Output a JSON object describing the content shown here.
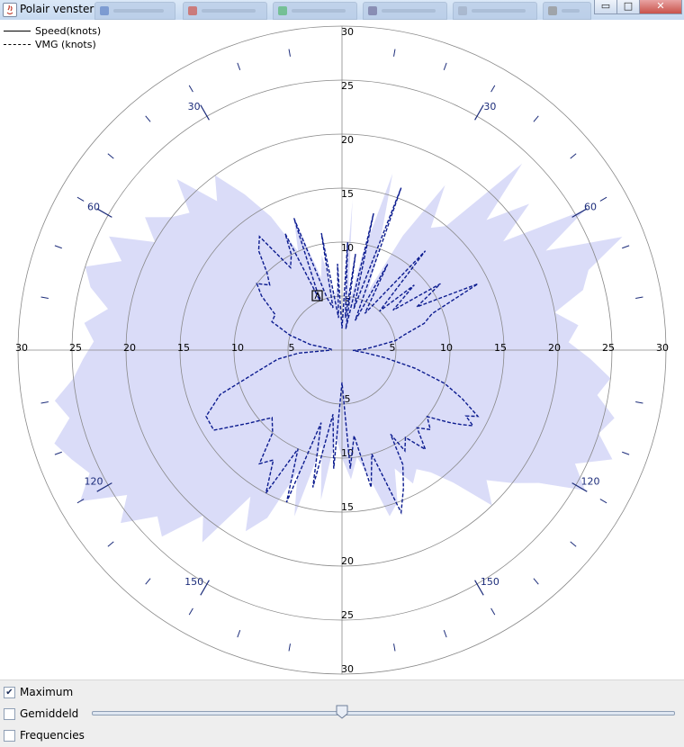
{
  "window": {
    "title": "Polair venster",
    "minimize": "▭",
    "maximize": "□",
    "close": "✕"
  },
  "legend": [
    {
      "label": "Speed(knots)",
      "style": "solid"
    },
    {
      "label": "VMG (knots)",
      "style": "dashed"
    }
  ],
  "controls": {
    "checkboxes": [
      {
        "label": "Maximum",
        "checked": true
      },
      {
        "label": "Gemiddeld",
        "checked": false
      },
      {
        "label": "Frequencies",
        "checked": false
      }
    ],
    "slider_value": 0.43
  },
  "colors": {
    "fill": "#dadcf8",
    "vmg": "#0b1b8f",
    "grid": "#888888",
    "angle_tick": "#1c2c7a"
  },
  "chart_data": {
    "type": "polar",
    "radial_ticks": [
      5,
      10,
      15,
      20,
      25,
      30
    ],
    "radial_max": 30,
    "angle_labels": [
      30,
      60,
      120,
      150
    ],
    "grid": true,
    "legend_position": "top-left",
    "series": [
      {
        "name": "Speed(knots)",
        "style": "filled",
        "points": [
          [
            0,
            2
          ],
          [
            4,
            14
          ],
          [
            8,
            4
          ],
          [
            12,
            9
          ],
          [
            16,
            17
          ],
          [
            20,
            10
          ],
          [
            24,
            6
          ],
          [
            28,
            12
          ],
          [
            32,
            18
          ],
          [
            36,
            14
          ],
          [
            40,
            15
          ],
          [
            44,
            24
          ],
          [
            48,
            18
          ],
          [
            52,
            22
          ],
          [
            56,
            18
          ],
          [
            60,
            26
          ],
          [
            64,
            21
          ],
          [
            68,
            28
          ],
          [
            72,
            24
          ],
          [
            76,
            23
          ],
          [
            80,
            20
          ],
          [
            84,
            22
          ],
          [
            88,
            21
          ],
          [
            92,
            23
          ],
          [
            96,
            25
          ],
          [
            100,
            24
          ],
          [
            104,
            26
          ],
          [
            108,
            25
          ],
          [
            112,
            27
          ],
          [
            116,
            24
          ],
          [
            120,
            26
          ],
          [
            124,
            22
          ],
          [
            128,
            20
          ],
          [
            132,
            18
          ],
          [
            136,
            20
          ],
          [
            140,
            16
          ],
          [
            144,
            14
          ],
          [
            148,
            13
          ],
          [
            152,
            14
          ],
          [
            156,
            12
          ],
          [
            160,
            15
          ],
          [
            164,
            16
          ],
          [
            168,
            12
          ],
          [
            172,
            10
          ],
          [
            176,
            12
          ],
          [
            180,
            10
          ],
          [
            184,
            8
          ],
          [
            188,
            14
          ],
          [
            192,
            9
          ],
          [
            196,
            16
          ],
          [
            200,
            12
          ],
          [
            204,
            17
          ],
          [
            208,
            19
          ],
          [
            212,
            16
          ],
          [
            216,
            22
          ],
          [
            220,
            20
          ],
          [
            224,
            24
          ],
          [
            228,
            23
          ],
          [
            232,
            26
          ],
          [
            236,
            24
          ],
          [
            240,
            28
          ],
          [
            244,
            26
          ],
          [
            248,
            27
          ],
          [
            252,
            28
          ],
          [
            256,
            26
          ],
          [
            260,
            27
          ],
          [
            264,
            25
          ],
          [
            268,
            24
          ],
          [
            272,
            23
          ],
          [
            276,
            24
          ],
          [
            280,
            22
          ],
          [
            284,
            24
          ],
          [
            288,
            25
          ],
          [
            292,
            22
          ],
          [
            296,
            24
          ],
          [
            300,
            20
          ],
          [
            304,
            22
          ],
          [
            308,
            20
          ],
          [
            312,
            19
          ],
          [
            316,
            22
          ],
          [
            320,
            18
          ],
          [
            324,
            20
          ],
          [
            328,
            17
          ],
          [
            332,
            14
          ],
          [
            336,
            10
          ],
          [
            340,
            13
          ],
          [
            344,
            7
          ],
          [
            348,
            9
          ],
          [
            352,
            5
          ],
          [
            356,
            6
          ]
        ]
      },
      {
        "name": "VMG (knots)",
        "style": "dashed",
        "points": [
          [
            0,
            2
          ],
          [
            3,
            10
          ],
          [
            6,
            3
          ],
          [
            8,
            9
          ],
          [
            10,
            2
          ],
          [
            13,
            13
          ],
          [
            16,
            4
          ],
          [
            20,
            16
          ],
          [
            24,
            3
          ],
          [
            28,
            9
          ],
          [
            32,
            4
          ],
          [
            40,
            12
          ],
          [
            44,
            5
          ],
          [
            48,
            9
          ],
          [
            52,
            6
          ],
          [
            56,
            11
          ],
          [
            60,
            8
          ],
          [
            64,
            14
          ],
          [
            68,
            9
          ],
          [
            72,
            8
          ],
          [
            76,
            6
          ],
          [
            80,
            5
          ],
          [
            84,
            3
          ],
          [
            88,
            2
          ],
          [
            92,
            1
          ],
          [
            96,
            2
          ],
          [
            100,
            4
          ],
          [
            104,
            7
          ],
          [
            108,
            10
          ],
          [
            112,
            12
          ],
          [
            116,
            14
          ],
          [
            118,
            13
          ],
          [
            120,
            14
          ],
          [
            122,
            13
          ],
          [
            124,
            12
          ],
          [
            128,
            10
          ],
          [
            132,
            11
          ],
          [
            136,
            10
          ],
          [
            140,
            12
          ],
          [
            144,
            10
          ],
          [
            148,
            11
          ],
          [
            150,
            9
          ],
          [
            152,
            12
          ],
          [
            156,
            14
          ],
          [
            160,
            16
          ],
          [
            164,
            10
          ],
          [
            168,
            13
          ],
          [
            172,
            8
          ],
          [
            176,
            11
          ],
          [
            180,
            3
          ],
          [
            184,
            11
          ],
          [
            188,
            6
          ],
          [
            192,
            13
          ],
          [
            196,
            7
          ],
          [
            200,
            15
          ],
          [
            204,
            10
          ],
          [
            208,
            15
          ],
          [
            212,
            12
          ],
          [
            216,
            13
          ],
          [
            220,
            10
          ],
          [
            226,
            9
          ],
          [
            232,
            11
          ],
          [
            238,
            14
          ],
          [
            244,
            14
          ],
          [
            250,
            12
          ],
          [
            256,
            8
          ],
          [
            262,
            6
          ],
          [
            266,
            4
          ],
          [
            270,
            1
          ],
          [
            275,
            1
          ],
          [
            280,
            3
          ],
          [
            286,
            5
          ],
          [
            292,
            7
          ],
          [
            298,
            7
          ],
          [
            304,
            9
          ],
          [
            308,
            10
          ],
          [
            312,
            9
          ],
          [
            316,
            10
          ],
          [
            320,
            12
          ],
          [
            324,
            13
          ],
          [
            328,
            9
          ],
          [
            332,
            10
          ],
          [
            334,
            12
          ],
          [
            336,
            5
          ],
          [
            340,
            13
          ],
          [
            344,
            5
          ],
          [
            348,
            4
          ],
          [
            350,
            11
          ],
          [
            354,
            3
          ],
          [
            357,
            8
          ]
        ]
      }
    ]
  }
}
